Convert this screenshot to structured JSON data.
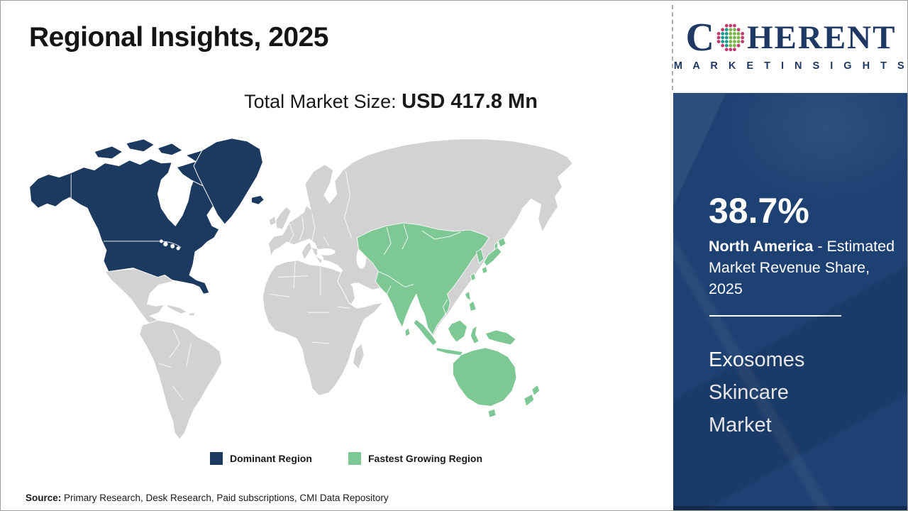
{
  "theme": {
    "dominant": "#1c3a60",
    "growing": "#7ec895",
    "neutral": "#d2d2d2",
    "sidebar": "#1d4173",
    "brand": "#1f3864"
  },
  "slide": {
    "title": "Regional Insights, 2025"
  },
  "market_size": {
    "label": "Total Market Size: ",
    "value": "USD 417.8 Mn"
  },
  "logo": {
    "word_start": "C",
    "word_end": "HERENT",
    "tagline": "M A R K E T   I N S I G H T S",
    "globe_colors": {
      "outer": "#c13a70",
      "left": "#1b9a8f",
      "right": "#7ab648"
    }
  },
  "map_data": {
    "type": "choropleth",
    "total_market_size_usd_mn": 417.8,
    "dominant_region": {
      "name": "North America",
      "color": "#1c3a60",
      "highlighted_areas": [
        "United States",
        "Canada",
        "Alaska",
        "Greenland",
        "Iceland"
      ]
    },
    "fastest_growing_region": {
      "name": "Asia Pacific",
      "color": "#7ec895",
      "highlighted_areas": [
        "Kazakhstan",
        "Central Asia",
        "China",
        "India",
        "Southeast Asia",
        "Indonesia",
        "Philippines",
        "Japan",
        "South Korea",
        "Papua New Guinea",
        "Australia",
        "New Zealand"
      ]
    },
    "neutral_color": "#d2d2d2",
    "share": {
      "region": "North America",
      "value_pct": 38.7,
      "metric": "Estimated Market Revenue Share",
      "year": 2025
    }
  },
  "legend": {
    "items": [
      {
        "label": "Dominant Region",
        "color": "#1c3a60"
      },
      {
        "label": "Fastest Growing Region",
        "color": "#7ec895"
      }
    ]
  },
  "sidebar": {
    "share_value": "38.7%",
    "share_region": "North America",
    "share_desc_rest": " - Estimated Market Revenue Share, 2025",
    "market_name": "Exosomes Skincare Market"
  },
  "footer": {
    "source_label": "Source:",
    "source_text": " Primary Research, Desk Research, Paid subscriptions, CMI Data Repository"
  }
}
